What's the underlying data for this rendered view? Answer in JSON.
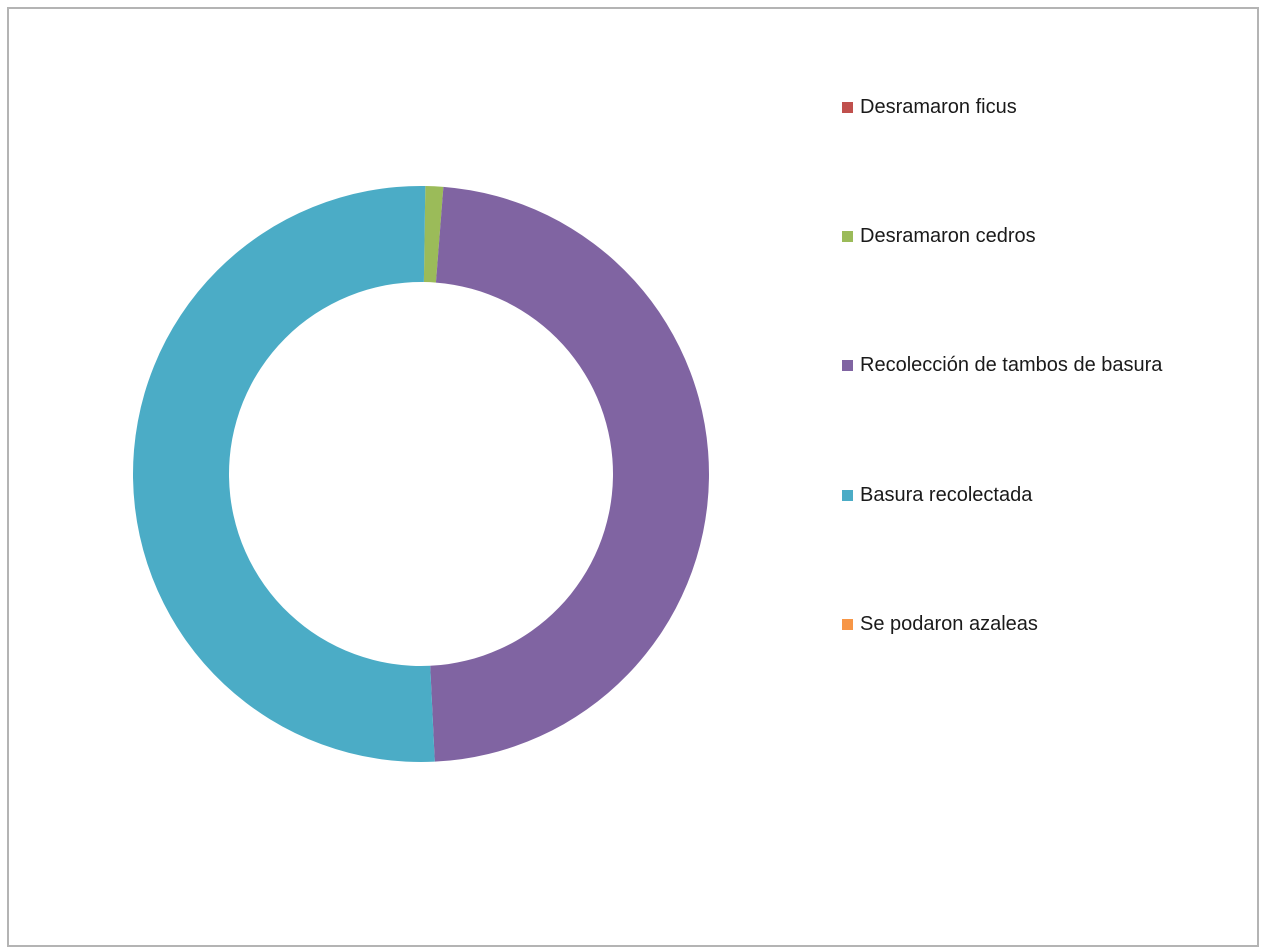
{
  "chart_data": {
    "type": "pie",
    "subtype": "donut",
    "title": "",
    "legend_position": "right",
    "series": [
      {
        "name": "Desramaron ficus",
        "value": 0,
        "color": "#c0504d"
      },
      {
        "name": "Desramaron cedros",
        "value": 1,
        "color": "#9bbb59"
      },
      {
        "name": "Recolección de tambos de basura",
        "value": 48,
        "color": "#8064a2"
      },
      {
        "name": "Basura recolectada",
        "value": 51,
        "color": "#4bacc6"
      },
      {
        "name": "Se podaron azaleas",
        "value": 0,
        "color": "#f79646"
      }
    ]
  }
}
